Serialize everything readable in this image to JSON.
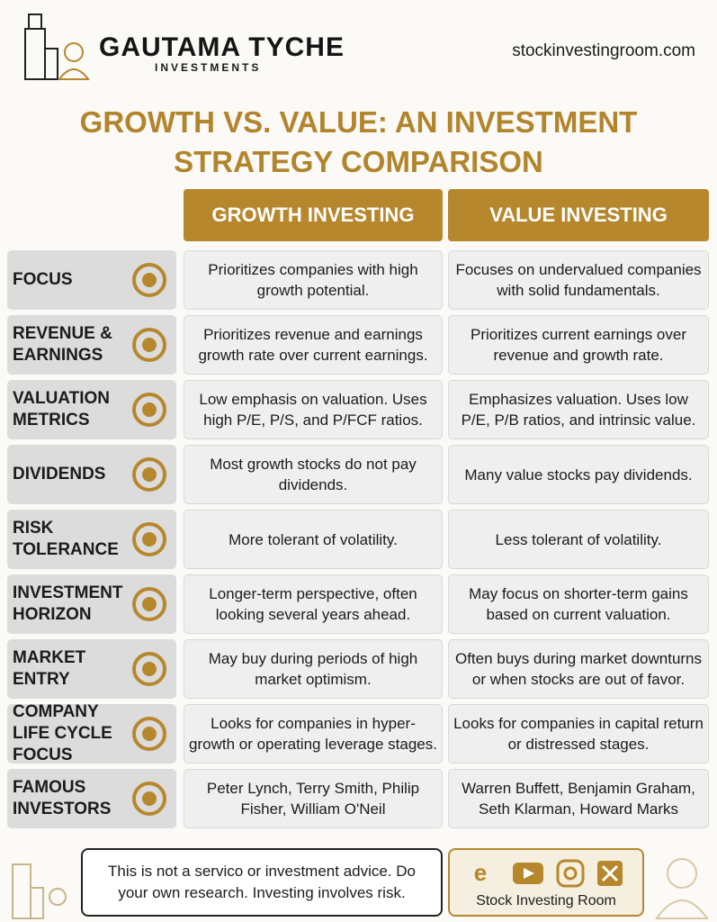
{
  "header": {
    "brand": "GAUTAMA TYCHE",
    "subtitle": "INVESTMENTS",
    "site": "stockinvestingroom.com"
  },
  "title": "GROWTH VS. VALUE: AN INVESTMENT STRATEGY COMPARISON",
  "table": {
    "columns": [
      "GROWTH INVESTING",
      "VALUE INVESTING"
    ],
    "rows": [
      {
        "label": "FOCUS",
        "growth": "Prioritizes companies with high growth potential.",
        "value": "Focuses on undervalued companies with solid fundamentals."
      },
      {
        "label": "REVENUE & EARNINGS",
        "growth": "Prioritizes revenue and earnings growth rate over current earnings.",
        "value": "Prioritizes current earnings over revenue and growth rate."
      },
      {
        "label": "VALUATION METRICS",
        "growth": "Low emphasis on valuation. Uses high P/E, P/S, and P/FCF ratios.",
        "value": "Emphasizes valuation. Uses low P/E, P/B ratios, and intrinsic value."
      },
      {
        "label": "DIVIDENDS",
        "growth": "Most growth stocks do not pay dividends.",
        "value": "Many value stocks pay dividends."
      },
      {
        "label": "RISK TOLERANCE",
        "growth": "More tolerant of volatility.",
        "value": "Less tolerant of volatility."
      },
      {
        "label": "INVESTMENT HORIZON",
        "growth": "Longer-term perspective, often looking several years ahead.",
        "value": "May focus on shorter-term gains based on current valuation."
      },
      {
        "label": "MARKET ENTRY",
        "growth": "May buy during periods of high market optimism.",
        "value": "Often buys during market downturns or when stocks are out of favor."
      },
      {
        "label": "COMPANY LIFE CYCLE FOCUS",
        "growth": "Looks for companies in hyper-growth or operating leverage stages.",
        "value": "Looks for companies in capital return or distressed stages."
      },
      {
        "label": "FAMOUS INVESTORS",
        "growth": "Peter Lynch, Terry Smith, Philip Fisher, William O'Neil",
        "value": "Warren Buffett, Benjamin Graham, Seth Klarman, Howard Marks"
      }
    ]
  },
  "footer": {
    "disclaimer": "This is not a servico or investment advice. Do your own research. Investing involves risk.",
    "brand": "Stock Investing Room"
  }
}
